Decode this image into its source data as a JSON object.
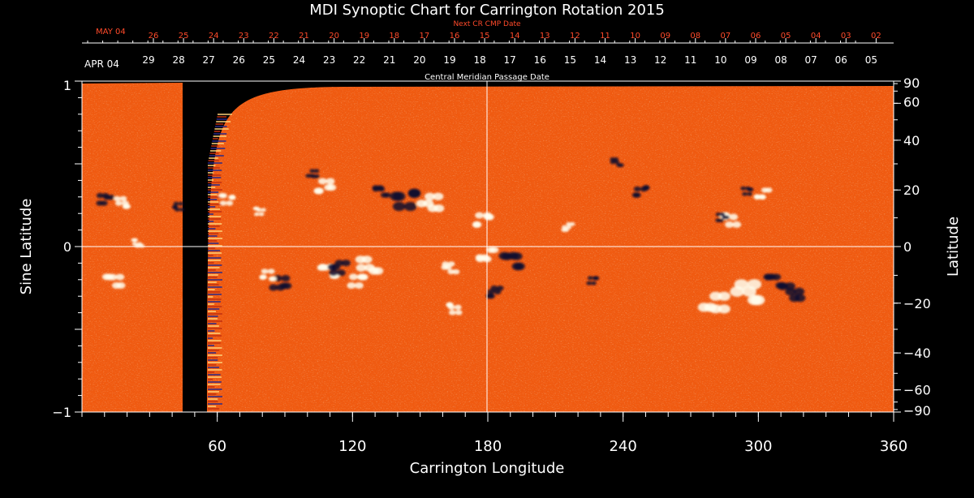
{
  "title": "MDI Synoptic Chart for Carrington Rotation 2015",
  "top_axis": {
    "next_label": "Next CR CMP Date",
    "next_month": "MAY 04",
    "next_ticks": [
      "26",
      "25",
      "24",
      "23",
      "22",
      "21",
      "20",
      "19",
      "18",
      "17",
      "16",
      "15",
      "14",
      "13",
      "12",
      "11",
      "10",
      "09",
      "08",
      "07",
      "06",
      "05",
      "04",
      "03",
      "02"
    ],
    "month": "APR 04",
    "ticks": [
      "29",
      "28",
      "27",
      "26",
      "25",
      "24",
      "23",
      "22",
      "21",
      "20",
      "19",
      "18",
      "17",
      "16",
      "15",
      "14",
      "13",
      "12",
      "11",
      "10",
      "09",
      "08",
      "07",
      "06",
      "05"
    ],
    "label": "Central Meridian Passage Date"
  },
  "x_axis": {
    "label": "Carrington Longitude",
    "range": [
      0,
      360
    ],
    "ticks": [
      "60",
      "120",
      "180",
      "240",
      "300",
      "360"
    ]
  },
  "y_axis_left": {
    "label": "Sine Latitude",
    "ticks": [
      "1",
      "0",
      "−1"
    ]
  },
  "y_axis_right": {
    "label": "Latitude",
    "ticks": [
      "90",
      "60",
      "40",
      "20",
      "0",
      "−20",
      "−40",
      "−60",
      "−90"
    ]
  },
  "colors": {
    "background": "#000000",
    "field_base": "#f05a10",
    "positive_polarity": "#ffffe0",
    "negative_polarity": "#100a40",
    "next_axis": "#ff4a2a",
    "axis": "#ffffff"
  }
}
